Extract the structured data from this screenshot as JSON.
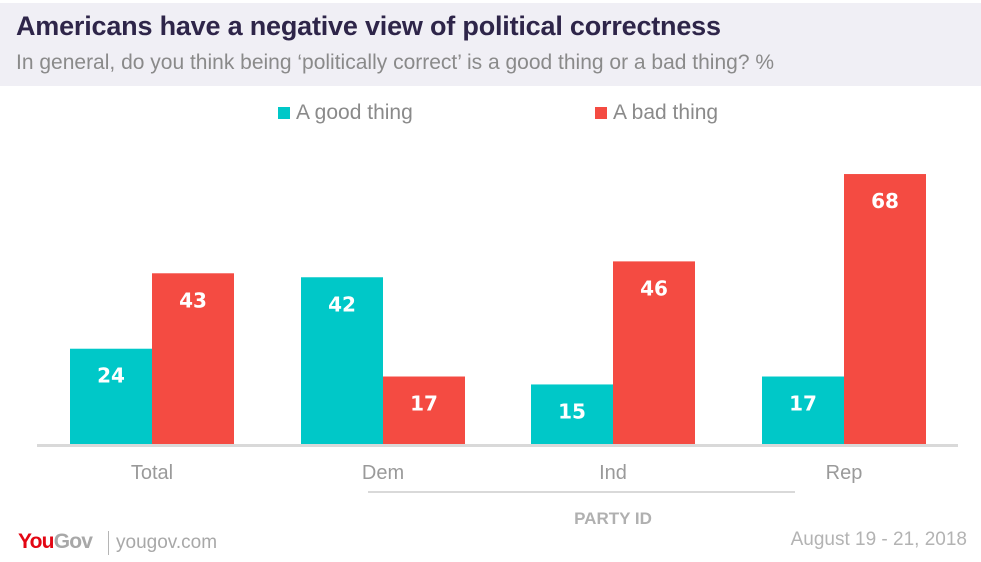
{
  "header": {
    "title": "Americans have a negative view of political correctness",
    "subtitle": "In general, do you think being ‘politically correct’ is a good thing or a bad thing? %"
  },
  "colors": {
    "good": "#00c8c8",
    "bad": "#f44b42",
    "axis": "#d9d9d9",
    "category_text": "#9a9a9a",
    "value_text": "#ffffff"
  },
  "chart_data": {
    "type": "bar",
    "title": "Americans have a negative view of political correctness",
    "subtitle": "In general, do you think being ‘politically correct’ is a good thing or a bad thing? %",
    "categories": [
      "Total",
      "Dem",
      "Ind",
      "Rep"
    ],
    "series": [
      {
        "name": "A good thing",
        "color": "#00c8c8",
        "values": [
          24,
          42,
          15,
          17
        ]
      },
      {
        "name": "A bad thing",
        "color": "#f44b42",
        "values": [
          43,
          17,
          46,
          68
        ]
      }
    ],
    "group_label": {
      "text": "PARTY ID",
      "categories": [
        "Dem",
        "Ind",
        "Rep"
      ]
    },
    "xlabel": "",
    "ylabel": "",
    "ylim": [
      0,
      70
    ],
    "grid": false,
    "legend": "top-center",
    "data_labels": true
  },
  "footer": {
    "logo_you": "You",
    "logo_gov": "Gov",
    "url": "yougov.com",
    "date": "August 19 - 21, 2018"
  }
}
